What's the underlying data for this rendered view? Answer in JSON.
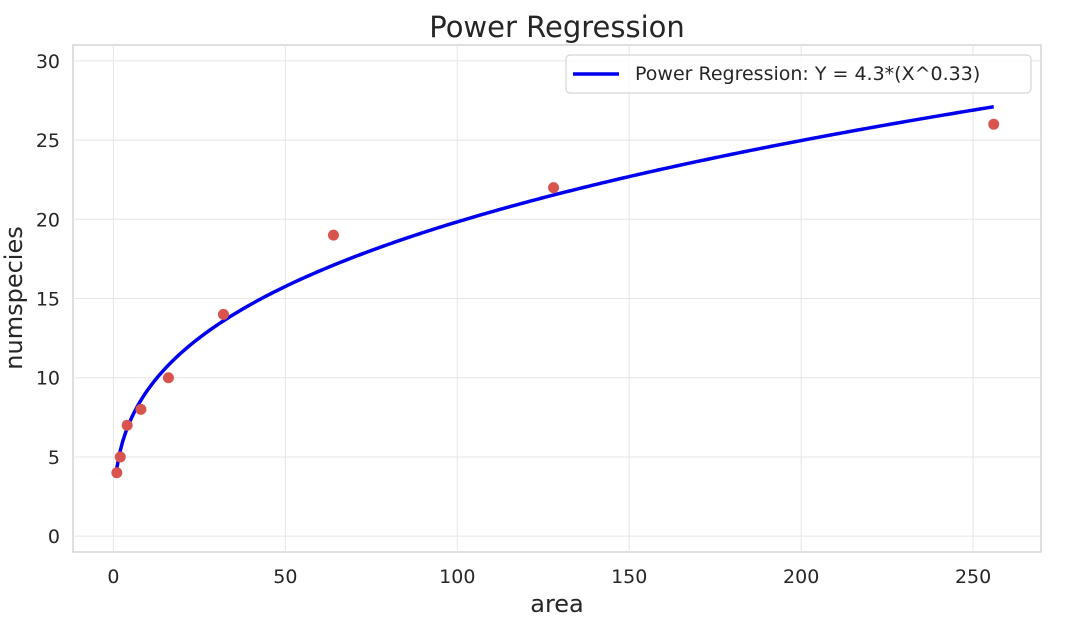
{
  "chart_data": {
    "type": "scatter",
    "title": "Power Regression",
    "xlabel": "area",
    "ylabel": "numspecies",
    "xlim": [
      -11.75,
      269.75
    ],
    "ylim": [
      -1,
      31
    ],
    "xticks": [
      0,
      50,
      100,
      150,
      200,
      250
    ],
    "yticks": [
      0,
      5,
      10,
      15,
      20,
      25,
      30
    ],
    "grid": true,
    "legend_position": "top-right",
    "points": {
      "color": "#d9534f",
      "x": [
        1,
        2,
        4,
        8,
        16,
        32,
        64,
        128,
        256
      ],
      "y": [
        4,
        5,
        7,
        8,
        10,
        14,
        19,
        22,
        26
      ]
    },
    "fit": {
      "name": "Power Regression: Y = 4.3*(X^0.33)",
      "color": "#0000ee",
      "a": 4.3,
      "b": 0.332,
      "x_start": 1,
      "x_end": 256
    }
  }
}
